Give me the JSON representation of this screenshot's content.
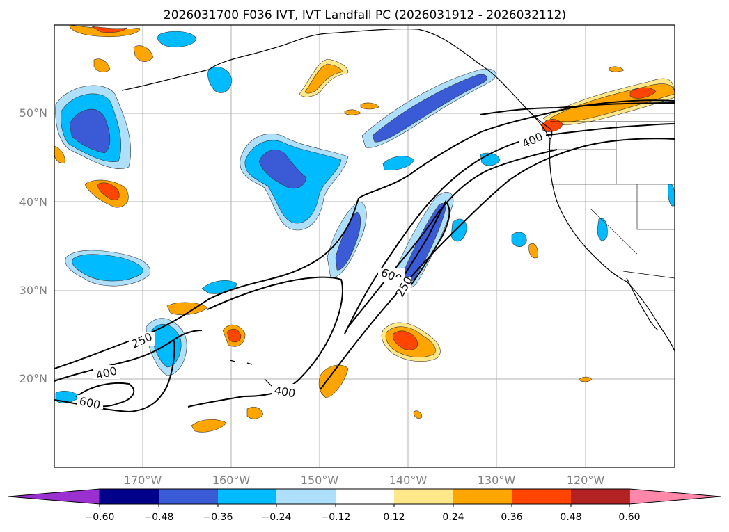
{
  "title": "2026031700 F036 IVT, IVT Landfall PC (2026031912 - 2026032112)",
  "axes": {
    "lat_labels": [
      "50°N",
      "40°N",
      "30°N",
      "20°N"
    ],
    "lon_labels": [
      "170°W",
      "160°W",
      "150°W",
      "140°W",
      "130°W",
      "120°W"
    ],
    "lat_range": [
      10,
      60
    ],
    "lon_range": [
      -180,
      -110
    ],
    "lat_values": [
      50,
      40,
      30,
      20
    ],
    "lon_values": [
      -170,
      -160,
      -150,
      -140,
      -130,
      -120
    ]
  },
  "colorbar": {
    "tick_labels": [
      "−0.60",
      "−0.48",
      "−0.36",
      "−0.24",
      "−0.12",
      "0.12",
      "0.24",
      "0.36",
      "0.48",
      "0.60"
    ],
    "colors": [
      "#9b30d0",
      "#00008b",
      "#3b5bd6",
      "#00bbff",
      "#aee0fb",
      "#ffffff",
      "#ffe88a",
      "#ffa500",
      "#ff4500",
      "#b22222",
      "#ff88aa"
    ]
  },
  "contour_labels": [
    {
      "text": "250",
      "lon": -180,
      "lat": 0
    },
    {
      "text": "400",
      "lon": 0,
      "lat": 0
    },
    {
      "text": "600",
      "lon": 0,
      "lat": 0
    },
    {
      "text": "400",
      "lon": 0,
      "lat": 0
    },
    {
      "text": "600",
      "lon": 0,
      "lat": 0
    },
    {
      "text": "250",
      "lon": 0,
      "lat": 0
    },
    {
      "text": "400",
      "lon": 0,
      "lat": 0
    }
  ],
  "chart_data": {
    "type": "map",
    "title": "2026031700 F036 IVT, IVT Landfall PC (2026031912 - 2026032112)",
    "projection": "equirectangular",
    "lon_range": [
      -180,
      -110
    ],
    "lat_range": [
      10,
      60
    ],
    "contour_levels": [
      250,
      400,
      600
    ],
    "contour_variable": "IVT",
    "filled_variable": "IVT Landfall PC",
    "color_levels": [
      -0.6,
      -0.48,
      -0.36,
      -0.24,
      -0.12,
      0.12,
      0.24,
      0.36,
      0.48,
      0.6
    ],
    "extend": "both"
  }
}
